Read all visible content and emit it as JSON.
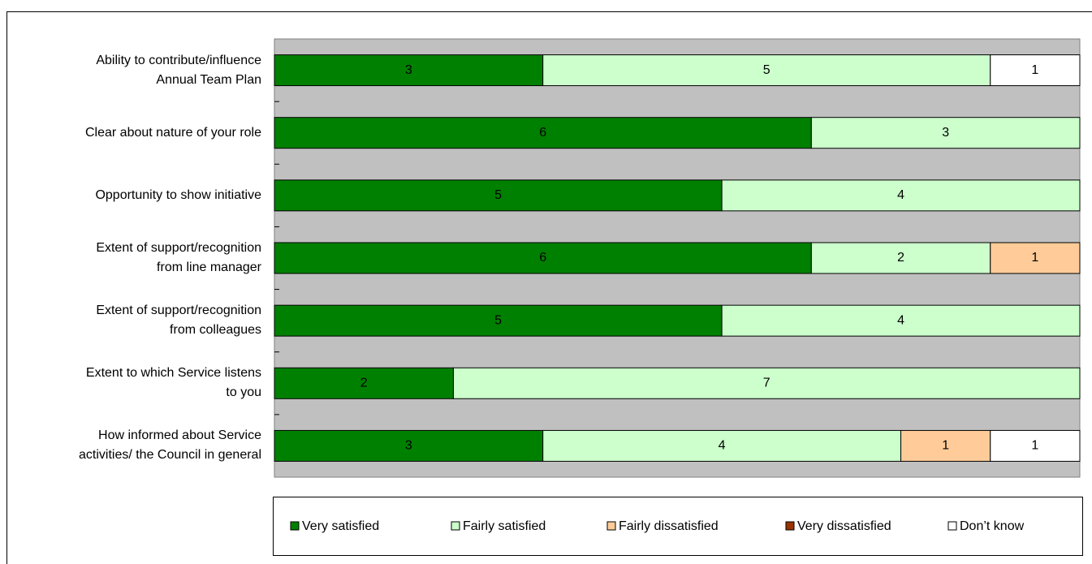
{
  "chart_data": {
    "type": "stacked-bar-horizontal",
    "categories": [
      "Ability to contribute/influence\nAnnual Team Plan",
      "Clear about nature of your role",
      "Opportunity to show initiative",
      "Extent of support/recognition\nfrom line manager",
      "Extent of support/recognition\nfrom colleagues",
      "Extent to which Service listens\nto you",
      "How informed about Service\nactivities/ the Council in general"
    ],
    "series": [
      {
        "name": "Very satisfied",
        "color": "#008000",
        "values": [
          3,
          6,
          5,
          6,
          5,
          2,
          3
        ]
      },
      {
        "name": "Fairly satisfied",
        "color": "#ccffcc",
        "values": [
          5,
          3,
          4,
          2,
          4,
          7,
          4
        ]
      },
      {
        "name": "Fairly dissatisfied",
        "color": "#ffcc99",
        "values": [
          0,
          0,
          0,
          1,
          0,
          0,
          1
        ]
      },
      {
        "name": "Very dissatisfied",
        "color": "#993300",
        "values": [
          0,
          0,
          0,
          0,
          0,
          0,
          0
        ]
      },
      {
        "name": "Don’t know",
        "color": "#ffffff",
        "values": [
          1,
          0,
          0,
          0,
          0,
          0,
          1
        ]
      }
    ],
    "xlim": [
      0,
      9
    ],
    "legend": "bottom"
  }
}
